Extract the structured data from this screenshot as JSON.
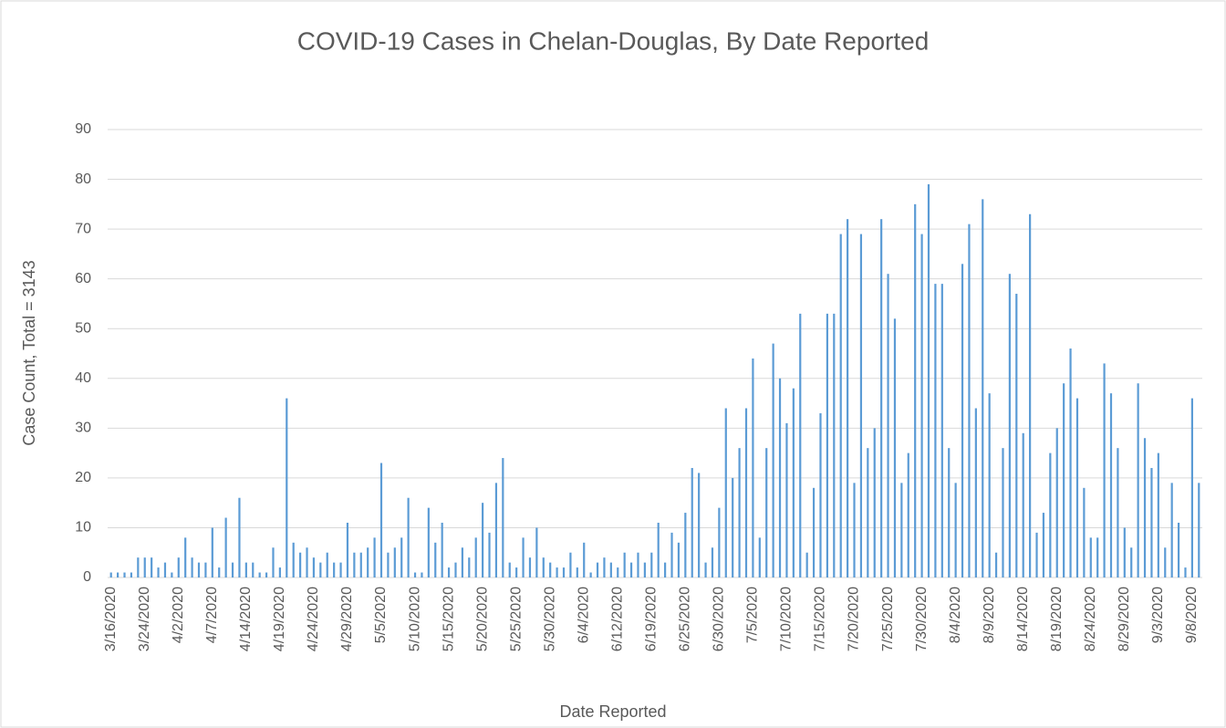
{
  "chart_data": {
    "type": "bar",
    "title": "COVID-19 Cases in Chelan-Douglas, By Date Reported",
    "xlabel": "Date Reported",
    "ylabel": "Case Count, Total = 3143",
    "color": "#5b9bd5",
    "grid": true,
    "ylim": [
      0,
      90
    ],
    "yticks": [
      0,
      10,
      20,
      30,
      40,
      50,
      60,
      70,
      80,
      90
    ],
    "categories": [
      "3/16/2020",
      null,
      null,
      null,
      null,
      "3/24/2020",
      null,
      null,
      null,
      null,
      "4/2/2020",
      null,
      null,
      null,
      null,
      "4/7/2020",
      null,
      null,
      null,
      null,
      "4/14/2020",
      null,
      null,
      null,
      null,
      "4/19/2020",
      null,
      null,
      null,
      null,
      "4/24/2020",
      null,
      null,
      null,
      null,
      "4/29/2020",
      null,
      null,
      null,
      null,
      "5/5/2020",
      null,
      null,
      null,
      null,
      "5/10/2020",
      null,
      null,
      null,
      null,
      "5/15/2020",
      null,
      null,
      null,
      null,
      "5/20/2020",
      null,
      null,
      null,
      null,
      "5/25/2020",
      null,
      null,
      null,
      null,
      "5/30/2020",
      null,
      null,
      null,
      null,
      "6/4/2020",
      null,
      null,
      null,
      null,
      "6/12/2020",
      null,
      null,
      null,
      null,
      "6/19/2020",
      null,
      null,
      null,
      null,
      "6/25/2020",
      null,
      null,
      null,
      null,
      "6/30/2020",
      null,
      null,
      null,
      null,
      "7/5/2020",
      null,
      null,
      null,
      null,
      "7/10/2020",
      null,
      null,
      null,
      null,
      "7/15/2020",
      null,
      null,
      null,
      null,
      "7/20/2020",
      null,
      null,
      null,
      null,
      "7/25/2020",
      null,
      null,
      null,
      null,
      "7/30/2020",
      null,
      null,
      null,
      null,
      "8/4/2020",
      null,
      null,
      null,
      null,
      "8/9/2020",
      null,
      null,
      null,
      null,
      "8/14/2020",
      null,
      null,
      null,
      null,
      "8/19/2020",
      null,
      null,
      null,
      null,
      "8/24/2020",
      null,
      null,
      null,
      null,
      "8/29/2020",
      null,
      null,
      null,
      null,
      "9/3/2020",
      null,
      null,
      null,
      null,
      "9/8/2020",
      null
    ],
    "values": [
      1,
      1,
      1,
      1,
      4,
      4,
      4,
      2,
      3,
      1,
      4,
      8,
      4,
      3,
      3,
      10,
      2,
      12,
      3,
      16,
      3,
      3,
      1,
      1,
      6,
      2,
      36,
      7,
      5,
      6,
      4,
      3,
      5,
      3,
      3,
      11,
      5,
      5,
      6,
      8,
      23,
      5,
      6,
      8,
      16,
      1,
      1,
      14,
      7,
      11,
      2,
      3,
      6,
      4,
      8,
      15,
      9,
      19,
      24,
      3,
      2,
      8,
      4,
      10,
      4,
      3,
      2,
      2,
      5,
      2,
      7,
      1,
      3,
      4,
      3,
      2,
      5,
      3,
      5,
      3,
      5,
      11,
      3,
      9,
      7,
      13,
      22,
      21,
      3,
      6,
      14,
      34,
      20,
      26,
      34,
      44,
      8,
      26,
      47,
      40,
      31,
      38,
      53,
      5,
      18,
      33,
      53,
      53,
      69,
      72,
      19,
      69,
      26,
      30,
      72,
      61,
      52,
      19,
      25,
      75,
      69,
      79,
      59,
      59,
      26,
      19,
      63,
      71,
      34,
      76,
      37,
      5,
      26,
      61,
      57,
      29,
      73,
      9,
      13,
      25,
      30,
      39,
      46,
      36,
      18,
      8,
      8,
      43,
      37,
      26,
      10,
      6,
      39,
      28,
      22,
      25,
      6,
      19,
      11,
      2,
      36,
      19
    ]
  }
}
